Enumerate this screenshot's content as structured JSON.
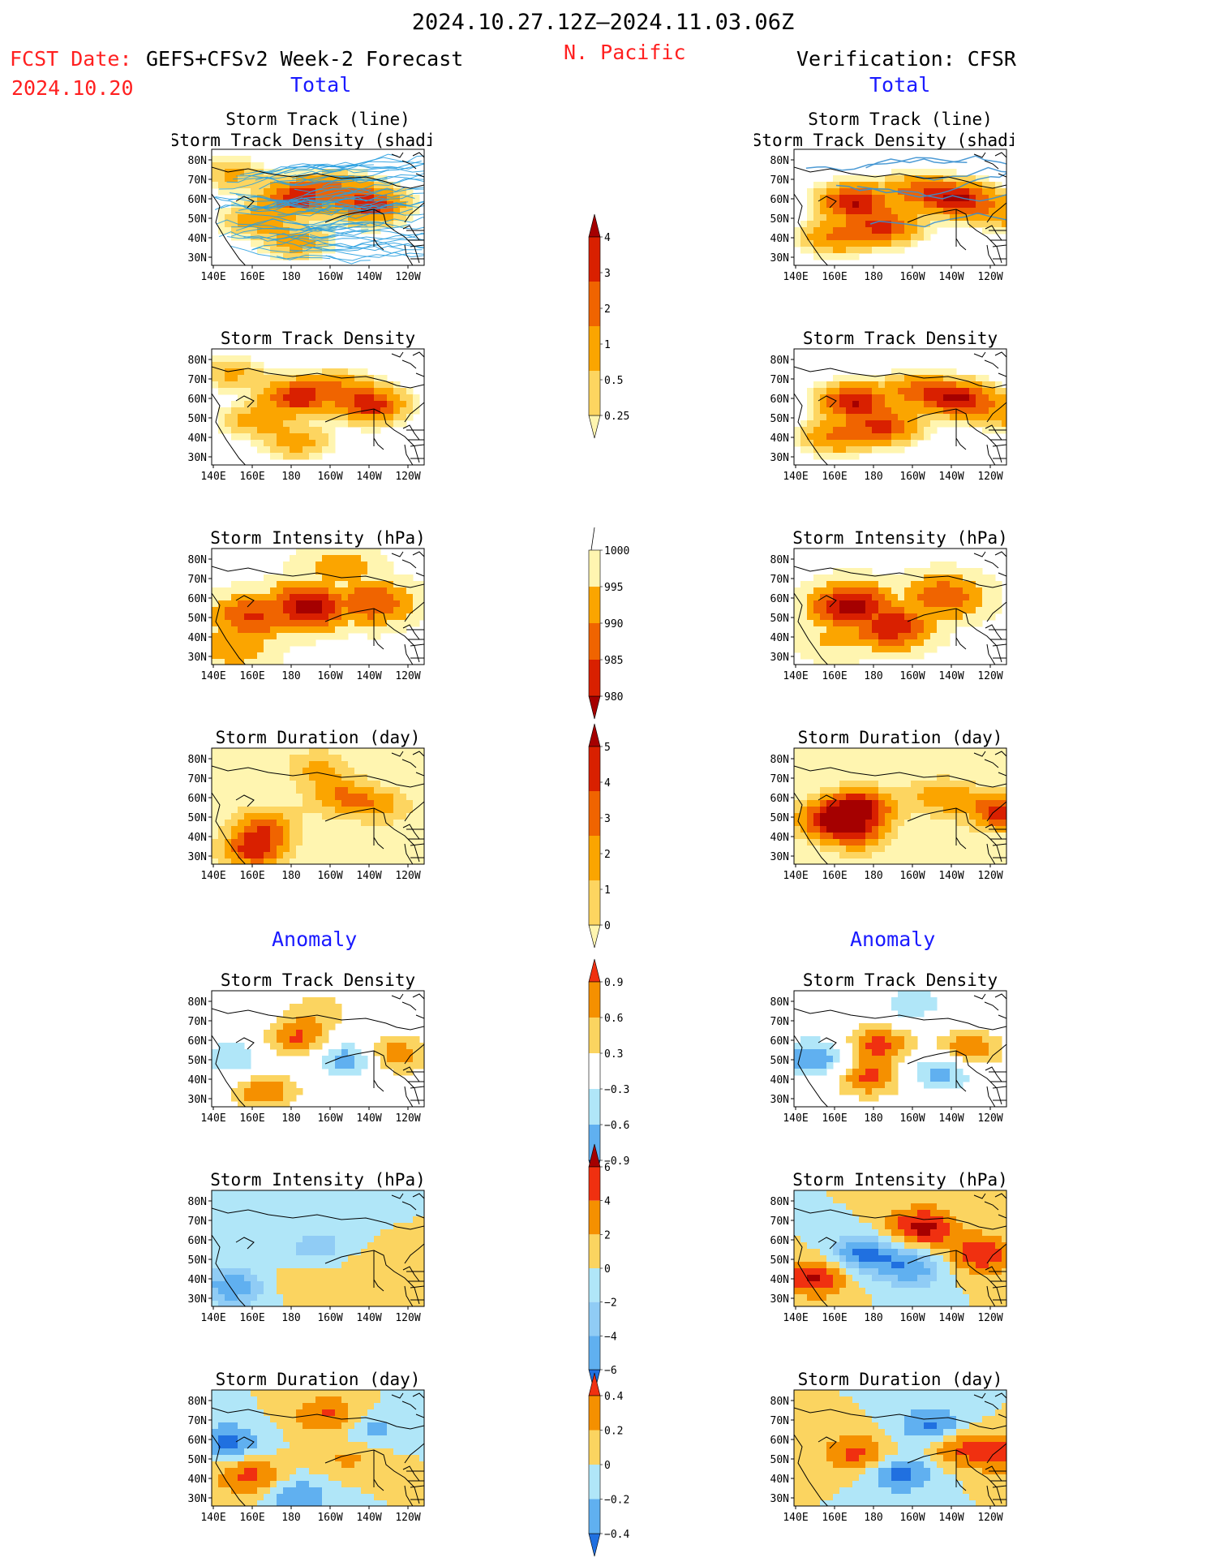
{
  "header": {
    "date_range": "2024.10.27.12Z–2024.11.03.06Z",
    "fcst_label": "FCST Date:",
    "fcst_date": "2024.10.20",
    "model": "GEFS+CFSv2 Week-2 Forecast",
    "region": "N. Pacific",
    "verification": "Verification: CFSR"
  },
  "sections": {
    "total": "Total",
    "anomaly": "Anomaly"
  },
  "colors": {
    "red_text": "#ff2020",
    "blue_text": "#1a1aff",
    "land": "#ffffff",
    "track_fcst": "#2aa0e0",
    "track_obs": "#3a90d0"
  },
  "map_axes": {
    "x_ticks": [
      "140E",
      "160E",
      "180",
      "160W",
      "140W",
      "120W"
    ],
    "y_ticks": [
      "80N",
      "70N",
      "60N",
      "50N",
      "40N",
      "30N"
    ],
    "lon_range": [
      140,
      240
    ],
    "lat_range": [
      25,
      85
    ]
  },
  "colorbars": [
    {
      "id": "cb-total-density",
      "labels": [
        "4",
        "3",
        "2",
        "1",
        "0.5",
        "0.25"
      ],
      "colors": [
        "#a50000",
        "#d92000",
        "#f06400",
        "#fba500",
        "#fdd560",
        "#fff5b0"
      ],
      "top_tri": true
    },
    {
      "id": "cb-total-intensity",
      "labels": [
        "1000",
        "995",
        "990",
        "985",
        "980"
      ],
      "colors": [
        "#fff5b0",
        "#fba500",
        "#f06400",
        "#d92000",
        "#a50000"
      ],
      "top_tri": false
    },
    {
      "id": "cb-total-duration",
      "labels": [
        "5",
        "4",
        "3",
        "2",
        "1",
        "0"
      ],
      "colors": [
        "#a50000",
        "#d92000",
        "#f06400",
        "#fba500",
        "#fdd560",
        "#fff5b0"
      ],
      "top_tri": true
    },
    {
      "id": "cb-anom-density",
      "labels": [
        "0.9",
        "0.6",
        "0.3",
        "−0.3",
        "−0.6",
        "−0.9"
      ],
      "colors": [
        "#f03010",
        "#f59000",
        "#fbd460",
        "#ffffff",
        "#b0e6f8",
        "#60b0f0",
        "#2070e0"
      ],
      "top_tri": true
    },
    {
      "id": "cb-anom-intensity",
      "labels": [
        "6",
        "4",
        "2",
        "0",
        "−2",
        "−4",
        "−6"
      ],
      "colors": [
        "#a50000",
        "#f03010",
        "#f59000",
        "#fbd460",
        "#b0e6f8",
        "#90ccf5",
        "#60b0f0",
        "#2070e0"
      ],
      "top_tri": true
    },
    {
      "id": "cb-anom-duration",
      "labels": [
        "0.4",
        "0.2",
        "0",
        "−0.2",
        "−0.4"
      ],
      "colors": [
        "#f03010",
        "#f59000",
        "#fbd460",
        "#b0e6f8",
        "#60b0f0",
        "#2070e0"
      ],
      "top_tri": true
    }
  ],
  "chart_data": [
    {
      "type": "heatmap",
      "source": "forecast",
      "section": "Total",
      "title_line1": "Storm Track (line)",
      "title_line2": "Storm Track Density (shading)",
      "field": "density",
      "overlay_tracks": true,
      "blobs": [
        {
          "lon": 180,
          "lat": 60,
          "value": 3.8
        },
        {
          "lon": 215,
          "lat": 56,
          "value": 3.6
        },
        {
          "lon": 200,
          "lat": 65,
          "value": 1.6
        },
        {
          "lon": 180,
          "lat": 37,
          "value": 1.4
        },
        {
          "lon": 160,
          "lat": 48,
          "value": 1.3
        },
        {
          "lon": 150,
          "lat": 72,
          "value": 1.1
        }
      ]
    },
    {
      "type": "heatmap",
      "source": "verification",
      "section": "Total",
      "title_line1": "Storm Track (line)",
      "title_line2": "Storm Track Density (shading)",
      "field": "density",
      "overlay_tracks": true,
      "blobs": [
        {
          "lon": 168,
          "lat": 58,
          "value": 4.0
        },
        {
          "lon": 218,
          "lat": 59,
          "value": 4.0
        },
        {
          "lon": 183,
          "lat": 45,
          "value": 3.2
        },
        {
          "lon": 160,
          "lat": 40,
          "value": 2.2
        },
        {
          "lon": 198,
          "lat": 63,
          "value": 2.4
        },
        {
          "lon": 240,
          "lat": 52,
          "value": 1.6
        }
      ]
    },
    {
      "type": "heatmap",
      "source": "forecast",
      "section": "Total",
      "title_line1": "Storm Track Density",
      "title_line2": "",
      "field": "density",
      "blobs": [
        {
          "lon": 180,
          "lat": 60,
          "value": 3.8
        },
        {
          "lon": 215,
          "lat": 56,
          "value": 3.6
        },
        {
          "lon": 200,
          "lat": 65,
          "value": 1.6
        },
        {
          "lon": 180,
          "lat": 37,
          "value": 1.4
        },
        {
          "lon": 160,
          "lat": 48,
          "value": 1.3
        },
        {
          "lon": 150,
          "lat": 72,
          "value": 1.1
        }
      ]
    },
    {
      "type": "heatmap",
      "source": "verification",
      "section": "Total",
      "title_line1": "Storm Track Density",
      "title_line2": "",
      "field": "density",
      "blobs": [
        {
          "lon": 168,
          "lat": 58,
          "value": 4.0
        },
        {
          "lon": 218,
          "lat": 59,
          "value": 4.0
        },
        {
          "lon": 183,
          "lat": 45,
          "value": 3.2
        },
        {
          "lon": 160,
          "lat": 40,
          "value": 2.2
        },
        {
          "lon": 198,
          "lat": 63,
          "value": 2.4
        },
        {
          "lon": 240,
          "lat": 52,
          "value": 1.6
        }
      ]
    },
    {
      "type": "heatmap",
      "source": "forecast",
      "section": "Total",
      "title_line1": "Storm Intensity (hPa)",
      "title_line2": "",
      "field": "intensity",
      "blobs": [
        {
          "lon": 185,
          "lat": 55,
          "value": 978
        },
        {
          "lon": 160,
          "lat": 50,
          "value": 984
        },
        {
          "lon": 215,
          "lat": 57,
          "value": 985
        },
        {
          "lon": 150,
          "lat": 35,
          "value": 990
        },
        {
          "lon": 200,
          "lat": 75,
          "value": 992
        }
      ]
    },
    {
      "type": "heatmap",
      "source": "verification",
      "section": "Total",
      "title_line1": "Storm Intensity (hPa)",
      "title_line2": "",
      "field": "intensity",
      "blobs": [
        {
          "lon": 168,
          "lat": 55,
          "value": 978
        },
        {
          "lon": 185,
          "lat": 45,
          "value": 981
        },
        {
          "lon": 210,
          "lat": 60,
          "value": 986
        },
        {
          "lon": 160,
          "lat": 38,
          "value": 994
        }
      ]
    },
    {
      "type": "heatmap",
      "source": "forecast",
      "section": "Total",
      "title_line1": "Storm Duration (day)",
      "title_line2": "",
      "field": "duration",
      "blobs": [
        {
          "lon": 165,
          "lat": 45,
          "value": 3.1
        },
        {
          "lon": 200,
          "lat": 60,
          "value": 2.7
        },
        {
          "lon": 160,
          "lat": 32,
          "value": 4.2
        },
        {
          "lon": 220,
          "lat": 55,
          "value": 2.3
        },
        {
          "lon": 190,
          "lat": 75,
          "value": 2.2
        }
      ]
    },
    {
      "type": "heatmap",
      "source": "verification",
      "section": "Total",
      "title_line1": "Storm Duration (day)",
      "title_line2": "",
      "field": "duration",
      "blobs": [
        {
          "lon": 172,
          "lat": 55,
          "value": 4.8
        },
        {
          "lon": 155,
          "lat": 48,
          "value": 4.2
        },
        {
          "lon": 210,
          "lat": 60,
          "value": 2.8
        },
        {
          "lon": 238,
          "lat": 52,
          "value": 4.5
        },
        {
          "lon": 170,
          "lat": 40,
          "value": 3.2
        }
      ]
    },
    {
      "type": "heatmap",
      "source": "forecast",
      "section": "Anomaly",
      "title_line1": "Storm Track Density",
      "title_line2": "",
      "field": "anom_density",
      "blobs": [
        {
          "lon": 180,
          "lat": 60,
          "value": 0.95
        },
        {
          "lon": 225,
          "lat": 52,
          "value": 0.95
        },
        {
          "lon": 165,
          "lat": 33,
          "value": 0.9
        },
        {
          "lon": 205,
          "lat": 50,
          "value": -0.95
        },
        {
          "lon": 150,
          "lat": 50,
          "value": -0.6
        },
        {
          "lon": 190,
          "lat": 75,
          "value": 0.45
        }
      ]
    },
    {
      "type": "heatmap",
      "source": "verification",
      "section": "Anomaly",
      "title_line1": "Storm Track Density",
      "title_line2": "",
      "field": "anom_density",
      "blobs": [
        {
          "lon": 180,
          "lat": 58,
          "value": 1.0
        },
        {
          "lon": 222,
          "lat": 54,
          "value": 1.0
        },
        {
          "lon": 175,
          "lat": 40,
          "value": 1.0
        },
        {
          "lon": 195,
          "lat": 78,
          "value": -0.5
        },
        {
          "lon": 150,
          "lat": 50,
          "value": -0.95
        },
        {
          "lon": 210,
          "lat": 44,
          "value": -0.9
        }
      ]
    },
    {
      "type": "heatmap",
      "source": "forecast",
      "section": "Anomaly",
      "title_line1": "Storm Intensity (hPa)",
      "title_line2": "",
      "field": "anom_intensity",
      "blobs": [
        {
          "lon": 150,
          "lat": 35,
          "value": -5.5
        },
        {
          "lon": 190,
          "lat": 55,
          "value": -3.0
        },
        {
          "lon": 215,
          "lat": 45,
          "value": 1.6
        },
        {
          "lon": 180,
          "lat": 38,
          "value": 1.4
        },
        {
          "lon": 190,
          "lat": 75,
          "value": -1.3
        }
      ]
    },
    {
      "type": "heatmap",
      "source": "verification",
      "section": "Anomaly",
      "title_line1": "Storm Intensity (hPa)",
      "title_line2": "",
      "field": "anom_intensity",
      "blobs": [
        {
          "lon": 200,
          "lat": 66,
          "value": 7.0
        },
        {
          "lon": 172,
          "lat": 52,
          "value": -6.5
        },
        {
          "lon": 195,
          "lat": 45,
          "value": -5.5
        },
        {
          "lon": 228,
          "lat": 52,
          "value": 6.0
        },
        {
          "lon": 150,
          "lat": 40,
          "value": 6.5
        }
      ]
    },
    {
      "type": "heatmap",
      "source": "forecast",
      "section": "Anomaly",
      "title_line1": "Storm Duration (day)",
      "title_line2": "",
      "field": "anom_duration",
      "blobs": [
        {
          "lon": 158,
          "lat": 40,
          "value": 0.5
        },
        {
          "lon": 195,
          "lat": 72,
          "value": 0.45
        },
        {
          "lon": 205,
          "lat": 50,
          "value": 0.25
        },
        {
          "lon": 148,
          "lat": 58,
          "value": -0.45
        },
        {
          "lon": 215,
          "lat": 65,
          "value": -0.3
        },
        {
          "lon": 180,
          "lat": 30,
          "value": -0.4
        }
      ]
    },
    {
      "type": "heatmap",
      "source": "verification",
      "section": "Anomaly",
      "title_line1": "Storm Duration (day)",
      "title_line2": "",
      "field": "anom_duration",
      "blobs": [
        {
          "lon": 170,
          "lat": 52,
          "value": 0.5
        },
        {
          "lon": 205,
          "lat": 66,
          "value": -0.5
        },
        {
          "lon": 190,
          "lat": 42,
          "value": -0.5
        },
        {
          "lon": 215,
          "lat": 56,
          "value": 0.4
        },
        {
          "lon": 238,
          "lat": 52,
          "value": 0.5
        }
      ]
    }
  ]
}
